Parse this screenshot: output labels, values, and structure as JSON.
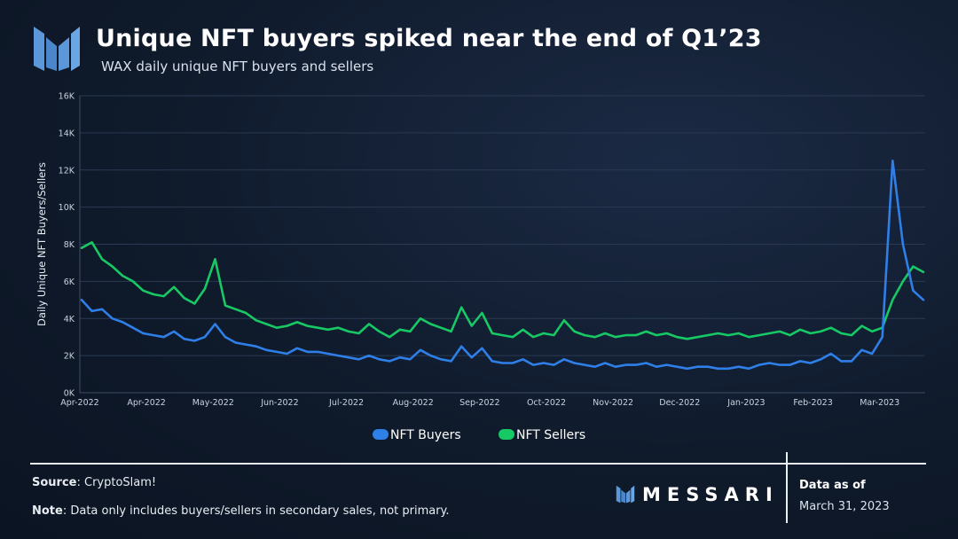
{
  "header": {
    "title": "Unique NFT buyers spiked near the end of Q1’23",
    "subtitle": "WAX daily unique NFT buyers and sellers"
  },
  "footer": {
    "source_label": "Source",
    "source_text": ": CryptoSlam!",
    "note_label": "Note",
    "note_text": ": Data only includes buyers/sellers in secondary sales, not primary.",
    "brand": "MESSARI",
    "data_as_of_label": "Data as of",
    "data_as_of_date": "March 31, 2023"
  },
  "colors": {
    "buyers": "#2f7fe8",
    "sellers": "#17c964",
    "grid": "#2a3a52",
    "axis_text": "#c9d3e0",
    "logo": "#5b97d9"
  },
  "icons": {
    "logo": "messari-logo-icon"
  },
  "chart_data": {
    "type": "line",
    "title": "Unique NFT buyers spiked near the end of Q1’23",
    "xlabel": "",
    "ylabel": "Daily Unique NFT Buyers/Sellers",
    "ylim": [
      0,
      16000
    ],
    "y_ticks": [
      0,
      2000,
      4000,
      6000,
      8000,
      10000,
      12000,
      14000,
      16000
    ],
    "y_tick_labels": [
      "0K",
      "2K",
      "4K",
      "6K",
      "8K",
      "10K",
      "12K",
      "14K",
      "16K"
    ],
    "x_ticks": [
      "Apr-2022",
      "Apr-2022",
      "May-2022",
      "Jun-2022",
      "Jul-2022",
      "Aug-2022",
      "Sep-2022",
      "Oct-2022",
      "Nov-2022",
      "Dec-2022",
      "Jan-2023",
      "Feb-2023",
      "Mar-2023"
    ],
    "x_note": "weekly samples from 2022-03-31 to 2023-03-31",
    "legend_position": "bottom-center",
    "grid": true,
    "series": [
      {
        "name": "NFT Buyers",
        "values": [
          5000,
          4400,
          4500,
          4000,
          3800,
          3500,
          3200,
          3100,
          3000,
          3300,
          2900,
          2800,
          3000,
          3700,
          3000,
          2700,
          2600,
          2500,
          2300,
          2200,
          2100,
          2400,
          2200,
          2200,
          2100,
          2000,
          1900,
          1800,
          2000,
          1800,
          1700,
          1900,
          1800,
          2300,
          2000,
          1800,
          1700,
          2500,
          1900,
          2400,
          1700,
          1600,
          1600,
          1800,
          1500,
          1600,
          1500,
          1800,
          1600,
          1500,
          1400,
          1600,
          1400,
          1500,
          1500,
          1600,
          1400,
          1500,
          1400,
          1300,
          1400,
          1400,
          1300,
          1300,
          1400,
          1300,
          1500,
          1600,
          1500,
          1500,
          1700,
          1600,
          1800,
          2100,
          1700,
          1700,
          2300,
          2100,
          3000,
          12500,
          8000,
          5500,
          5000
        ]
      },
      {
        "name": "NFT Sellers",
        "values": [
          7800,
          8100,
          7200,
          6800,
          6300,
          6000,
          5500,
          5300,
          5200,
          5700,
          5100,
          4800,
          5600,
          7200,
          4700,
          4500,
          4300,
          3900,
          3700,
          3500,
          3600,
          3800,
          3600,
          3500,
          3400,
          3500,
          3300,
          3200,
          3700,
          3300,
          3000,
          3400,
          3300,
          4000,
          3700,
          3500,
          3300,
          4600,
          3600,
          4300,
          3200,
          3100,
          3000,
          3400,
          3000,
          3200,
          3100,
          3900,
          3300,
          3100,
          3000,
          3200,
          3000,
          3100,
          3100,
          3300,
          3100,
          3200,
          3000,
          2900,
          3000,
          3100,
          3200,
          3100,
          3200,
          3000,
          3100,
          3200,
          3300,
          3100,
          3400,
          3200,
          3300,
          3500,
          3200,
          3100,
          3600,
          3300,
          3500,
          5000,
          6000,
          6800,
          6500
        ]
      }
    ]
  }
}
